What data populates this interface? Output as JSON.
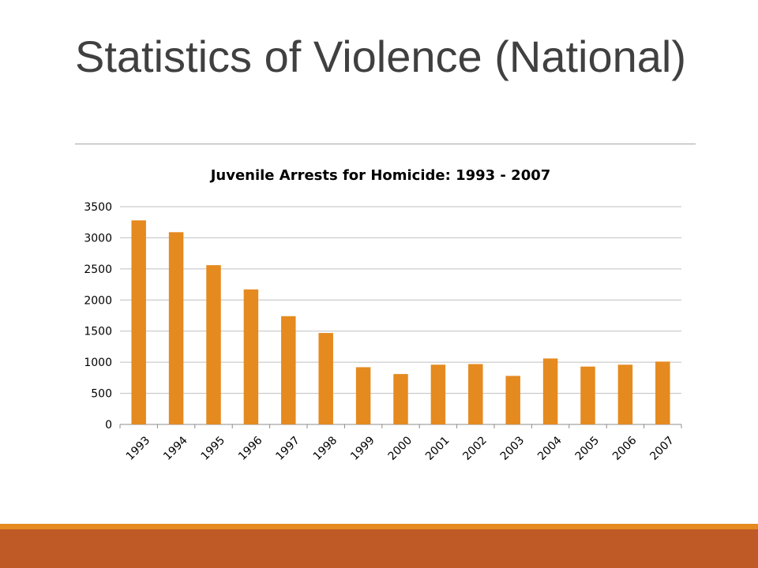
{
  "slide": {
    "title": "Statistics of Violence (National)"
  },
  "colors": {
    "bar": "#e58a1f",
    "title_text": "#404040",
    "footer_accent": "#e58a1f",
    "footer": "#bf5a27"
  },
  "chart_data": {
    "type": "bar",
    "title": "Juvenile Arrests for Homicide: 1993 - 2007",
    "xlabel": "",
    "ylabel": "",
    "categories": [
      "1993",
      "1994",
      "1995",
      "1996",
      "1997",
      "1998",
      "1999",
      "2000",
      "2001",
      "2002",
      "2003",
      "2004",
      "2005",
      "2006",
      "2007"
    ],
    "values": [
      3280,
      3090,
      2560,
      2170,
      1740,
      1470,
      920,
      810,
      960,
      970,
      780,
      1060,
      930,
      960,
      1010
    ],
    "ylim": [
      0,
      3500
    ],
    "yticks": [
      0,
      500,
      1000,
      1500,
      2000,
      2500,
      3000,
      3500
    ],
    "grid": true,
    "legend": "none"
  }
}
